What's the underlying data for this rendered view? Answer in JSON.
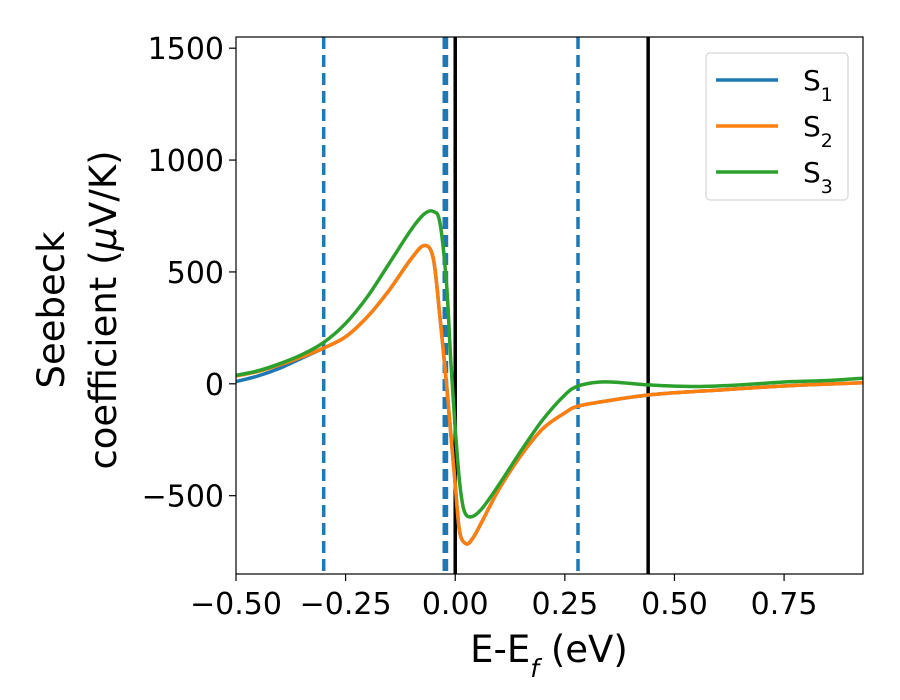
{
  "chart_data": {
    "type": "line",
    "xlabel": "E-E",
    "xlabel_sub": "f",
    "xlabel_unit": " (eV)",
    "ylabel_line1": "Seebeck",
    "ylabel_line2": "coefficient  (",
    "ylabel_mu": "μ",
    "ylabel_unit": "V/K)",
    "xlim": [
      -0.5,
      0.93
    ],
    "ylim": [
      -850,
      1550
    ],
    "xticks": [
      -0.5,
      -0.25,
      0.0,
      0.25,
      0.5,
      0.75
    ],
    "xtick_labels": [
      "−0.50",
      "−0.25",
      "0.00",
      "0.25",
      "0.50",
      "0.75"
    ],
    "yticks": [
      -500,
      0,
      500,
      1000,
      1500
    ],
    "ytick_labels": [
      "−500",
      "0",
      "500",
      "1000",
      "1500"
    ],
    "grid": false,
    "legend_position": "top-right",
    "vlines_dashed": {
      "color": "#1f77b4",
      "x": [
        -0.3,
        -0.025,
        -0.02,
        0.28
      ]
    },
    "vlines_solid": {
      "color": "#000000",
      "x": [
        0.0,
        0.44
      ]
    },
    "series": [
      {
        "name": "S",
        "name_sub": "1",
        "color": "#1f77b4",
        "points": [
          [
            -0.5,
            10
          ],
          [
            -0.45,
            35
          ],
          [
            -0.4,
            70
          ],
          [
            -0.35,
            115
          ],
          [
            -0.3,
            160
          ],
          [
            -0.25,
            210
          ],
          [
            -0.2,
            300
          ],
          [
            -0.15,
            420
          ],
          [
            -0.1,
            560
          ],
          [
            -0.07,
            618
          ],
          [
            -0.05,
            560
          ],
          [
            -0.035,
            300
          ],
          [
            -0.02,
            0
          ],
          [
            0.0,
            -450
          ],
          [
            0.01,
            -660
          ],
          [
            0.025,
            -715
          ],
          [
            0.04,
            -690
          ],
          [
            0.06,
            -620
          ],
          [
            0.1,
            -470
          ],
          [
            0.15,
            -320
          ],
          [
            0.2,
            -200
          ],
          [
            0.25,
            -130
          ],
          [
            0.28,
            -100
          ],
          [
            0.35,
            -75
          ],
          [
            0.44,
            -50
          ],
          [
            0.5,
            -40
          ],
          [
            0.6,
            -28
          ],
          [
            0.7,
            -15
          ],
          [
            0.8,
            -5
          ],
          [
            0.93,
            5
          ]
        ]
      },
      {
        "name": "S",
        "name_sub": "2",
        "color": "#ff7f0e",
        "points": [
          [
            -0.5,
            35
          ],
          [
            -0.45,
            55
          ],
          [
            -0.4,
            85
          ],
          [
            -0.35,
            120
          ],
          [
            -0.3,
            160
          ],
          [
            -0.25,
            210
          ],
          [
            -0.2,
            300
          ],
          [
            -0.15,
            420
          ],
          [
            -0.1,
            560
          ],
          [
            -0.07,
            618
          ],
          [
            -0.05,
            560
          ],
          [
            -0.035,
            300
          ],
          [
            -0.02,
            0
          ],
          [
            0.0,
            -450
          ],
          [
            0.01,
            -660
          ],
          [
            0.025,
            -715
          ],
          [
            0.04,
            -690
          ],
          [
            0.06,
            -620
          ],
          [
            0.1,
            -470
          ],
          [
            0.15,
            -320
          ],
          [
            0.2,
            -200
          ],
          [
            0.25,
            -130
          ],
          [
            0.28,
            -100
          ],
          [
            0.35,
            -75
          ],
          [
            0.44,
            -50
          ],
          [
            0.5,
            -40
          ],
          [
            0.6,
            -28
          ],
          [
            0.7,
            -15
          ],
          [
            0.8,
            -5
          ],
          [
            0.93,
            5
          ]
        ]
      },
      {
        "name": "S",
        "name_sub": "3",
        "color": "#2ca02c",
        "points": [
          [
            -0.5,
            38
          ],
          [
            -0.45,
            58
          ],
          [
            -0.4,
            90
          ],
          [
            -0.35,
            130
          ],
          [
            -0.3,
            185
          ],
          [
            -0.25,
            270
          ],
          [
            -0.2,
            390
          ],
          [
            -0.15,
            540
          ],
          [
            -0.1,
            690
          ],
          [
            -0.07,
            760
          ],
          [
            -0.05,
            770
          ],
          [
            -0.035,
            720
          ],
          [
            -0.02,
            450
          ],
          [
            -0.01,
            100
          ],
          [
            0.0,
            -200
          ],
          [
            0.01,
            -440
          ],
          [
            0.02,
            -565
          ],
          [
            0.035,
            -595
          ],
          [
            0.06,
            -560
          ],
          [
            0.1,
            -450
          ],
          [
            0.15,
            -300
          ],
          [
            0.2,
            -160
          ],
          [
            0.25,
            -50
          ],
          [
            0.28,
            -10
          ],
          [
            0.33,
            8
          ],
          [
            0.38,
            5
          ],
          [
            0.44,
            -5
          ],
          [
            0.55,
            -12
          ],
          [
            0.65,
            -5
          ],
          [
            0.75,
            8
          ],
          [
            0.85,
            15
          ],
          [
            0.93,
            25
          ]
        ]
      }
    ]
  }
}
